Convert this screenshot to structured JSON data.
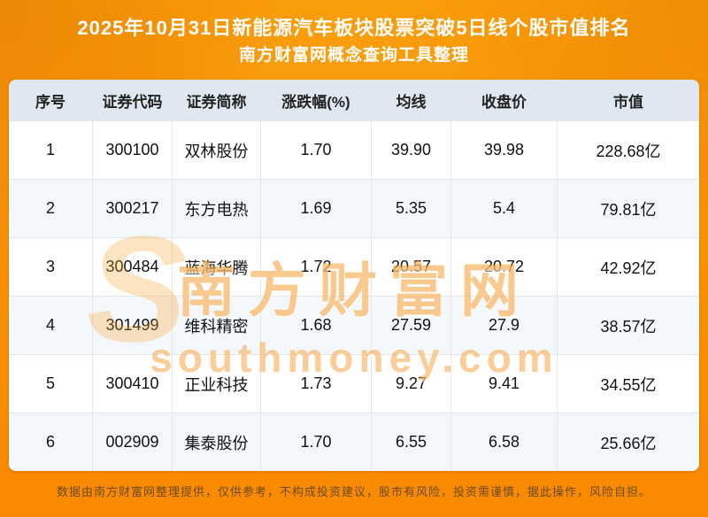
{
  "header": {
    "title_line1": "2025年10月31日新能源汽车板块股票突破5日线个股市值排名",
    "title_line2": "南方财富网概念查询工具整理"
  },
  "chart_data": {
    "type": "table",
    "title": "2025年10月31日新能源汽车板块股票突破5日线个股市值排名",
    "subtitle": "南方财富网概念查询工具整理",
    "columns": [
      "序号",
      "证券代码",
      "证券简称",
      "涨跌幅(%)",
      "均线",
      "收盘价",
      "市值"
    ],
    "rows": [
      [
        "1",
        "300100",
        "双林股份",
        "1.70",
        "39.90",
        "39.98",
        "228.68亿"
      ],
      [
        "2",
        "300217",
        "东方电热",
        "1.69",
        "5.35",
        "5.4",
        "79.81亿"
      ],
      [
        "3",
        "300484",
        "蓝海华腾",
        "1.72",
        "20.57",
        "20.72",
        "42.92亿"
      ],
      [
        "4",
        "301499",
        "维科精密",
        "1.68",
        "27.59",
        "27.9",
        "38.57亿"
      ],
      [
        "5",
        "300410",
        "正业科技",
        "1.73",
        "9.27",
        "9.41",
        "34.55亿"
      ],
      [
        "6",
        "002909",
        "集泰股份",
        "1.70",
        "6.55",
        "6.58",
        "25.66亿"
      ]
    ]
  },
  "watermark": {
    "logo": "S",
    "line1": "南方财富网",
    "line2": "southmoney.com"
  },
  "footer": {
    "disclaimer": "数据由南方财富网整理提供，仅供参考，不构成投资建议，股市有风险，投资需谨慎，据此操作，风险自担。"
  }
}
